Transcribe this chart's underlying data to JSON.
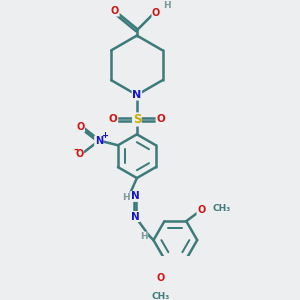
{
  "bg_color": "#eceef0",
  "atom_colors": {
    "C": "#3d7a7a",
    "H": "#7a9a9a",
    "N": "#1515cc",
    "O": "#cc1515",
    "S": "#ccaa00"
  },
  "bond_color": "#3d7a7a",
  "bond_width": 1.8
}
